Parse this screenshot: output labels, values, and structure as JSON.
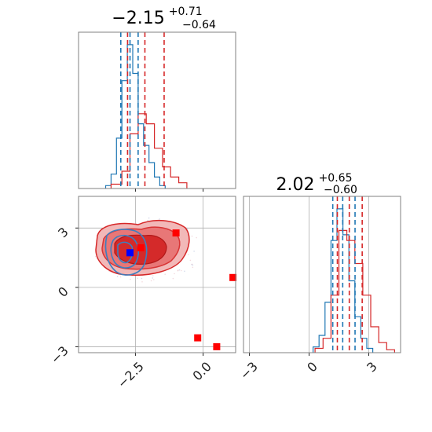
{
  "chart_data": [
    {
      "type": "histogram",
      "title": {
        "main": "−2.15",
        "sup": "+0.71",
        "sub": "−0.64"
      },
      "xlim": [
        -4.6,
        1.2
      ],
      "series": [
        {
          "name": "",
          "color": "#1f77b4",
          "bins": [
            -3.6,
            -3.4,
            -3.2,
            -3.0,
            -2.8,
            -2.6,
            -2.4,
            -2.2,
            -2.0,
            -1.8,
            -1.6,
            -1.4
          ],
          "values": [
            0.02,
            0.1,
            0.35,
            0.75,
            1.0,
            0.8,
            0.45,
            0.3,
            0.18,
            0.08,
            0.02
          ]
        },
        {
          "name": "",
          "color": "#d62728",
          "bins": [
            -3.4,
            -3.0,
            -2.7,
            -2.4,
            -2.1,
            -1.8,
            -1.5,
            -1.2,
            -0.9,
            -0.6
          ],
          "values": [
            0.03,
            0.12,
            0.38,
            0.52,
            0.45,
            0.28,
            0.15,
            0.08,
            0.04
          ]
        }
      ],
      "quantile_lines": [
        {
          "color": "#1f77b4",
          "x": [
            -3.04,
            -2.7,
            -2.4
          ]
        },
        {
          "color": "#d62728",
          "x": [
            -2.79,
            -2.15,
            -1.44
          ]
        }
      ]
    },
    {
      "type": "contour-scatter",
      "xlim": [
        -4.6,
        1.2
      ],
      "ylim": [
        -3.3,
        4.6
      ],
      "xticks": [
        -2.5,
        0.0
      ],
      "xtick_labels": [
        "−2.5",
        "0.0"
      ],
      "yticks": [
        -3,
        0,
        3
      ],
      "ytick_labels": [
        "−3",
        "0",
        "3"
      ],
      "grid": true,
      "markers": [
        {
          "x": -2.7,
          "y": 1.75,
          "color": "#0000ff",
          "shape": "square"
        },
        {
          "x": -2.3,
          "y": 2.0,
          "color": "#ff0000",
          "shape": "square"
        },
        {
          "x": -1.0,
          "y": 2.75,
          "color": "#ff0000",
          "shape": "square"
        },
        {
          "x": 1.1,
          "y": 0.5,
          "color": "#ff0000",
          "shape": "square"
        },
        {
          "x": -0.2,
          "y": -2.55,
          "color": "#ff0000",
          "shape": "square"
        },
        {
          "x": 0.5,
          "y": -3.0,
          "color": "#ff0000",
          "shape": "square"
        }
      ]
    },
    {
      "type": "histogram",
      "title": {
        "main": "2.02",
        "sup": "+0.65",
        "sub": "−0.60"
      },
      "xlim": [
        -3.3,
        4.6
      ],
      "xticks": [
        -3,
        0,
        3
      ],
      "xtick_labels": [
        "−3",
        "0",
        "3"
      ],
      "grid": true,
      "series": [
        {
          "name": "",
          "color": "#1f77b4",
          "bins": [
            0.2,
            0.5,
            0.8,
            1.1,
            1.4,
            1.7,
            2.0,
            2.3,
            2.6,
            2.9,
            3.2
          ],
          "values": [
            0.04,
            0.12,
            0.35,
            0.78,
            1.0,
            0.82,
            0.5,
            0.25,
            0.1,
            0.03
          ]
        },
        {
          "name": "",
          "color": "#d62728",
          "bins": [
            0.3,
            0.7,
            1.1,
            1.5,
            1.9,
            2.3,
            2.7,
            3.1,
            3.5,
            3.9,
            4.3
          ],
          "values": [
            0.03,
            0.1,
            0.4,
            0.85,
            0.78,
            0.62,
            0.4,
            0.18,
            0.07,
            0.02
          ]
        }
      ],
      "quantile_lines": [
        {
          "color": "#1f77b4",
          "x": [
            1.19,
            1.69,
            2.31
          ]
        },
        {
          "color": "#d62728",
          "x": [
            1.42,
            2.02,
            2.67
          ]
        }
      ]
    }
  ]
}
